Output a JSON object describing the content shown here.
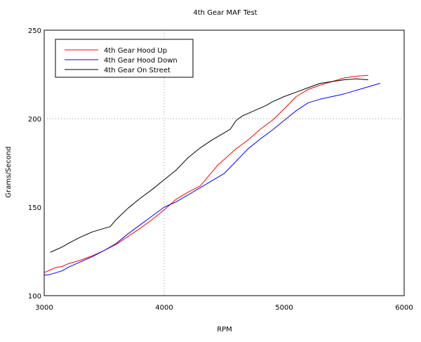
{
  "chart_data": {
    "type": "line",
    "title": "4th Gear MAF Test",
    "xlabel": "RPM",
    "ylabel": "Grams/Second",
    "xlim": [
      3000,
      6000
    ],
    "ylim": [
      100,
      250
    ],
    "xticks": [
      3000,
      4000,
      5000,
      6000
    ],
    "yticks": [
      100,
      150,
      200,
      250
    ],
    "grid": "dotted at center lines (x=4000, y=200)",
    "legend_position": "top-left",
    "series": [
      {
        "name": "4th Gear Hood Up",
        "color": "#ff0000",
        "x": [
          3000,
          3050,
          3100,
          3150,
          3200,
          3300,
          3400,
          3500,
          3600,
          3700,
          3800,
          3900,
          4000,
          4100,
          4200,
          4300,
          4350,
          4400,
          4450,
          4500,
          4550,
          4600,
          4650,
          4700,
          4800,
          4900,
          5000,
          5100,
          5200,
          5300,
          5400,
          5450,
          5500,
          5550,
          5600,
          5700
        ],
        "y": [
          113,
          114.5,
          116,
          116.5,
          118,
          120,
          122.5,
          125.5,
          129,
          133.5,
          138,
          143,
          148.5,
          154.5,
          158.5,
          162,
          166,
          170,
          174,
          177,
          180,
          183,
          185.5,
          188,
          194,
          199,
          205.5,
          212.5,
          216.5,
          219,
          221,
          222,
          223,
          223.5,
          224,
          224.5
        ]
      },
      {
        "name": "4th Gear Hood Down",
        "color": "#0000ff",
        "x": [
          3000,
          3050,
          3100,
          3150,
          3200,
          3300,
          3400,
          3500,
          3600,
          3700,
          3800,
          3900,
          4000,
          4100,
          4200,
          4300,
          4400,
          4500,
          4600,
          4700,
          4800,
          4900,
          5000,
          5100,
          5200,
          5300,
          5400,
          5500,
          5600,
          5700,
          5800
        ],
        "y": [
          111.5,
          112,
          113,
          114,
          116,
          119,
          122,
          125.5,
          129.5,
          135,
          140,
          145,
          150,
          153,
          157,
          161,
          165,
          169,
          176,
          183,
          188.5,
          193.5,
          199,
          204.5,
          209,
          211,
          212.5,
          214,
          216,
          218,
          220
        ]
      },
      {
        "name": "4th Gear On Street",
        "color": "#000000",
        "x": [
          3050,
          3100,
          3150,
          3200,
          3300,
          3400,
          3500,
          3550,
          3600,
          3700,
          3800,
          3900,
          4000,
          4100,
          4150,
          4200,
          4300,
          4400,
          4500,
          4550,
          4600,
          4650,
          4700,
          4800,
          4850,
          4900,
          5000,
          5100,
          5200,
          5300,
          5400,
          5500,
          5600,
          5700
        ],
        "y": [
          124.5,
          126,
          127.5,
          129.5,
          133,
          136,
          138,
          139,
          143,
          149.5,
          155,
          160,
          165.5,
          171,
          174.5,
          178,
          183.5,
          188,
          192,
          194,
          199,
          201.5,
          203,
          206,
          207.5,
          209.5,
          212.5,
          215,
          217.5,
          220,
          221,
          222,
          222.5,
          222
        ]
      }
    ]
  }
}
